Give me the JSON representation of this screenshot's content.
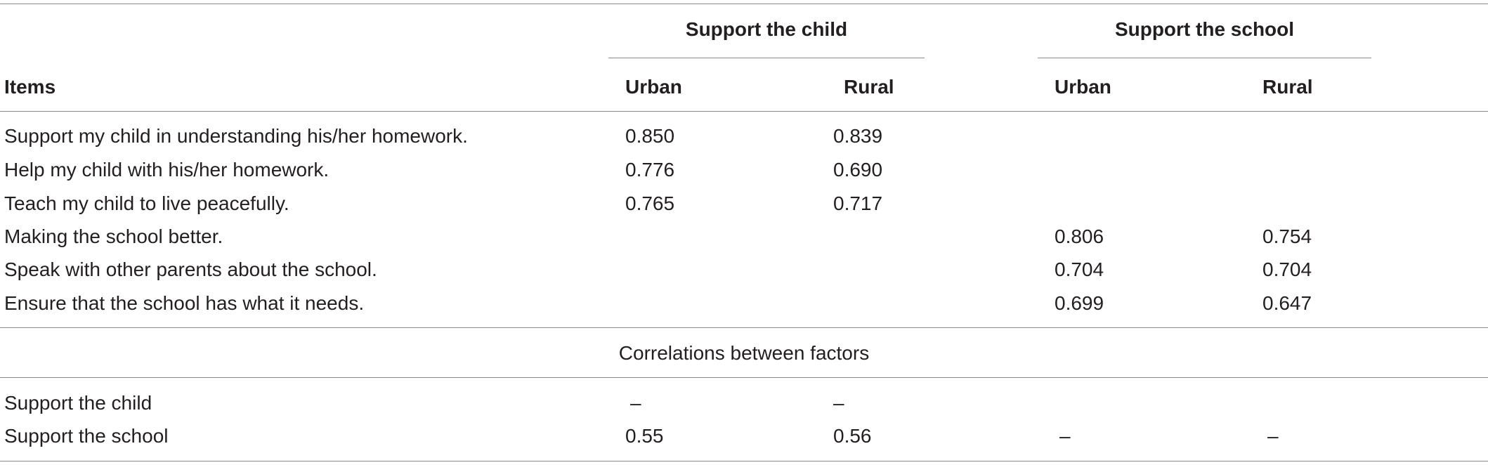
{
  "table": {
    "group_headers": {
      "child": "Support the child",
      "school": "Support the school"
    },
    "column_headers": {
      "items": "Items",
      "child_urban": "Urban",
      "child_rural": "Rural",
      "school_urban": "Urban",
      "school_rural": "Rural"
    },
    "rows": [
      {
        "item": "Support my child in understanding his/her homework.",
        "child_urban": "0.850",
        "child_rural": "0.839",
        "school_urban": "",
        "school_rural": ""
      },
      {
        "item": "Help my child with his/her homework.",
        "child_urban": "0.776",
        "child_rural": "0.690",
        "school_urban": "",
        "school_rural": ""
      },
      {
        "item": "Teach my child to live peacefully.",
        "child_urban": "0.765",
        "child_rural": "0.717",
        "school_urban": "",
        "school_rural": ""
      },
      {
        "item": "Making the school better.",
        "child_urban": "",
        "child_rural": "",
        "school_urban": "0.806",
        "school_rural": "0.754"
      },
      {
        "item": "Speak with other parents about the school.",
        "child_urban": "",
        "child_rural": "",
        "school_urban": "0.704",
        "school_rural": "0.704"
      },
      {
        "item": "Ensure that the school has what it needs.",
        "child_urban": "",
        "child_rural": "",
        "school_urban": "0.699",
        "school_rural": "0.647"
      }
    ],
    "correlations_label": "Correlations between factors",
    "correlation_rows": [
      {
        "item": "Support the child",
        "child_urban": "–",
        "child_rural": "–",
        "school_urban": "",
        "school_rural": ""
      },
      {
        "item": "Support the school",
        "child_urban": "0.55",
        "child_rural": "0.56",
        "school_urban": "–",
        "school_rural": "–"
      }
    ]
  }
}
